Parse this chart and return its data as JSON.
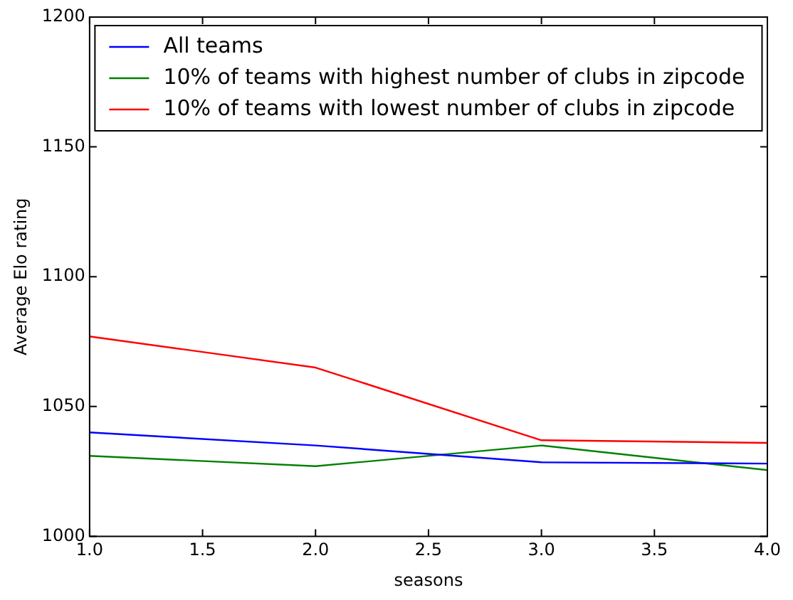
{
  "chart_data": {
    "type": "line",
    "xlabel": "seasons",
    "ylabel": "Average Elo rating",
    "x": [
      1,
      2,
      3,
      4
    ],
    "series": [
      {
        "name": "All teams",
        "color": "#0000ff",
        "values": [
          1040,
          1035,
          1028.5,
          1028
        ]
      },
      {
        "name": "10% of teams with highest number of clubs in zipcode",
        "color": "#008000",
        "values": [
          1031,
          1027,
          1035,
          1025.5
        ]
      },
      {
        "name": "10% of teams with lowest number of clubs in zipcode",
        "color": "#ff0000",
        "values": [
          1077,
          1065,
          1037,
          1036
        ]
      }
    ],
    "xlim": [
      1,
      4
    ],
    "xticks": [
      {
        "value": 1,
        "label": "1.0"
      },
      {
        "value": 1.5,
        "label": "1.5"
      },
      {
        "value": 2,
        "label": "2.0"
      },
      {
        "value": 2.5,
        "label": "2.5"
      },
      {
        "value": 3,
        "label": "3.0"
      },
      {
        "value": 3.5,
        "label": "3.5"
      },
      {
        "value": 4,
        "label": "4.0"
      }
    ],
    "ylim": [
      1000,
      1200
    ],
    "yticks": [
      1000,
      1050,
      1100,
      1150,
      1200
    ],
    "legend": "top",
    "grid": false,
    "marker": "none",
    "line_style": "solid"
  }
}
